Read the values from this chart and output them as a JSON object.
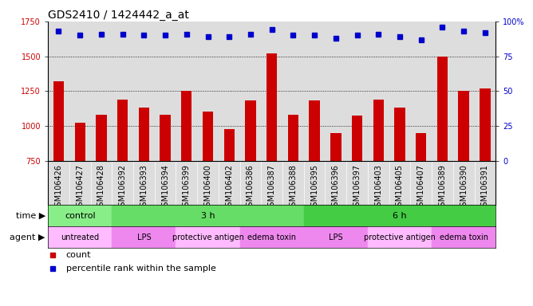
{
  "title": "GDS2410 / 1424442_a_at",
  "samples": [
    "GSM106426",
    "GSM106427",
    "GSM106428",
    "GSM106392",
    "GSM106393",
    "GSM106394",
    "GSM106399",
    "GSM106400",
    "GSM106402",
    "GSM106386",
    "GSM106387",
    "GSM106388",
    "GSM106395",
    "GSM106396",
    "GSM106397",
    "GSM106403",
    "GSM106405",
    "GSM106407",
    "GSM106389",
    "GSM106390",
    "GSM106391"
  ],
  "counts": [
    1320,
    1025,
    1080,
    1190,
    1130,
    1080,
    1250,
    1105,
    975,
    1185,
    1520,
    1080,
    1185,
    950,
    1075,
    1190,
    1130,
    950,
    1500,
    1250,
    1270
  ],
  "percentiles": [
    93,
    90,
    91,
    91,
    90,
    90,
    91,
    89,
    89,
    91,
    94,
    90,
    90,
    88,
    90,
    91,
    89,
    87,
    96,
    93,
    92
  ],
  "ylim_left": [
    750,
    1750
  ],
  "ylim_right": [
    0,
    100
  ],
  "yticks_left": [
    750,
    1000,
    1250,
    1500,
    1750
  ],
  "yticks_right": [
    0,
    25,
    50,
    75,
    100
  ],
  "bar_color": "#cc0000",
  "dot_color": "#0000cc",
  "grid_values": [
    1000,
    1250,
    1500
  ],
  "time_bands": [
    {
      "label": "control",
      "start": 0,
      "end": 3,
      "color": "#88ee88"
    },
    {
      "label": "3 h",
      "start": 3,
      "end": 12,
      "color": "#66dd66"
    },
    {
      "label": "6 h",
      "start": 12,
      "end": 21,
      "color": "#44cc44"
    }
  ],
  "agent_bands": [
    {
      "label": "untreated",
      "start": 0,
      "end": 3,
      "color": "#ffbbff"
    },
    {
      "label": "LPS",
      "start": 3,
      "end": 6,
      "color": "#ee88ee"
    },
    {
      "label": "protective antigen",
      "start": 6,
      "end": 9,
      "color": "#ffbbff"
    },
    {
      "label": "edema toxin",
      "start": 9,
      "end": 12,
      "color": "#ee88ee"
    },
    {
      "label": "LPS",
      "start": 12,
      "end": 15,
      "color": "#ee88ee"
    },
    {
      "label": "protective antigen",
      "start": 15,
      "end": 18,
      "color": "#ffbbff"
    },
    {
      "label": "edema toxin",
      "start": 18,
      "end": 21,
      "color": "#ee88ee"
    }
  ],
  "bg_color": "#dddddd",
  "legend_count_color": "#cc0000",
  "legend_dot_color": "#0000cc",
  "title_fontsize": 10,
  "tick_fontsize": 7,
  "label_fontsize": 8,
  "band_fontsize": 8,
  "agent_fontsize": 7
}
